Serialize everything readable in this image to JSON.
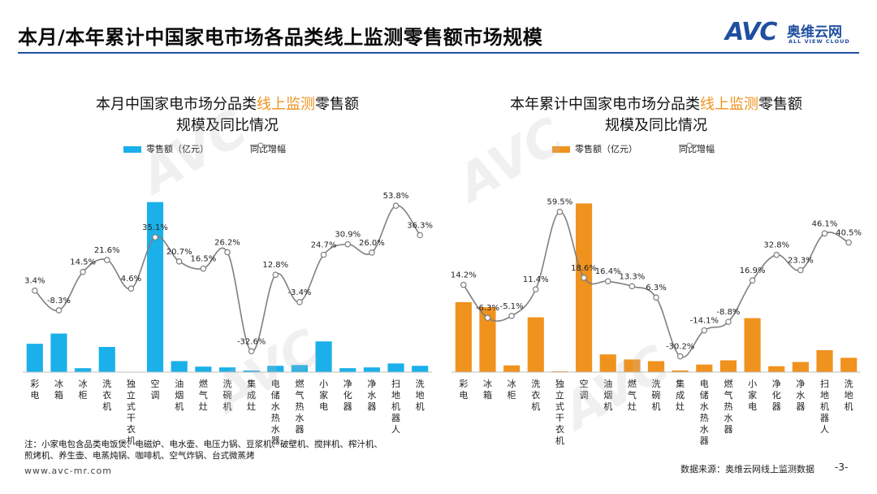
{
  "header": {
    "title": "本月/本年累计中国家电市场各品类线上监测零售额市场规模",
    "logo_mark": "AVC",
    "logo_cn": "奥维云网",
    "logo_en": "ALL VIEW CLOUD"
  },
  "footer": {
    "note_line1": "注：小家电包含品类电饭煲、电磁炉、电水壶、电压力锅、豆浆机、破壁机、搅拌机、榨汁机、",
    "note_line2": "煎烤机、养生壶、电蒸炖锅、咖啡机、空气炸锅、台式微蒸烤",
    "url": "www.avc-mr.com",
    "source": "数据来源：奥维云网线上监测数据",
    "page": "-3-"
  },
  "colors": {
    "left_bar": "#1ab0ea",
    "right_bar": "#f0921e",
    "line": "#7f7f7f",
    "title_rule": "#1f4fa0"
  },
  "chart_data": [
    {
      "type": "bar",
      "title_pre": "本月中国家电市场分品类",
      "title_hl": "线上监测",
      "title_post": "零售额",
      "title_line2": "规模及同比情况",
      "legend_bar": "零售额（亿元）",
      "legend_line": "同比增幅",
      "categories": [
        "彩电",
        "冰箱",
        "冰柜",
        "洗衣机",
        "独立式干衣机",
        "空调",
        "油烟机",
        "燃气灶",
        "洗碗机",
        "集成灶",
        "电储水热水器",
        "燃气热水器",
        "小家电",
        "净化器",
        "净水器",
        "扫地机器人",
        "洗地机"
      ],
      "series": [
        {
          "name": "零售额（亿元）",
          "kind": "bar",
          "values": [
            36,
            49,
            5,
            32,
            0.5,
            216,
            14,
            7,
            6,
            2,
            8,
            9,
            39,
            5,
            6,
            11,
            8
          ]
        },
        {
          "name": "同比增幅",
          "kind": "line",
          "values": [
            3.4,
            -8.3,
            14.5,
            21.6,
            4.6,
            35.1,
            20.7,
            16.5,
            26.2,
            -32.6,
            12.8,
            -3.4,
            24.7,
            30.9,
            26.0,
            53.8,
            36.3
          ],
          "labels": [
            "3.4%",
            "-8.3%",
            "14.5%",
            "21.6%",
            "4.6%",
            "35.1%",
            "20.7%",
            "16.5%",
            "26.2%",
            "-32.6%",
            "12.8%",
            "-3.4%",
            "24.7%",
            "30.9%",
            "26.0%",
            "53.8%",
            "36.3%"
          ]
        }
      ],
      "bar_ylim": [
        0,
        225
      ],
      "line_ylim": [
        -45,
        65
      ]
    },
    {
      "type": "bar",
      "title_pre": "本年累计中国家电市场分品类",
      "title_hl": "线上监测",
      "title_post": "零售额",
      "title_line2": "规模及同比情况",
      "legend_bar": "零售额（亿元）",
      "legend_line": "同比增幅",
      "categories": [
        "彩电",
        "冰箱",
        "冰柜",
        "洗衣机",
        "独立式干衣机",
        "空调",
        "油烟机",
        "燃气灶",
        "洗碗机",
        "集成灶",
        "电储水热水器",
        "燃气热水器",
        "小家电",
        "净化器",
        "净水器",
        "扫地机器人",
        "洗地机"
      ],
      "series": [
        {
          "name": "零售额（亿元）",
          "kind": "bar",
          "values": [
            83,
            77,
            8,
            65,
            1,
            200,
            21,
            15,
            13,
            2,
            9,
            14,
            64,
            7,
            12,
            26,
            17
          ]
        },
        {
          "name": "同比增幅",
          "kind": "line",
          "values": [
            14.2,
            -6.3,
            -5.1,
            11.4,
            59.5,
            18.6,
            16.4,
            13.3,
            6.3,
            -30.2,
            -14.1,
            -8.8,
            16.9,
            32.8,
            23.3,
            46.1,
            40.5
          ],
          "labels": [
            "14.2%",
            "-6.3%",
            "-5.1%",
            "11.4%",
            "59.5%",
            "18.6%",
            "16.4%",
            "13.3%",
            "6.3%",
            "-30.2%",
            "-14.1%",
            "-8.8%",
            "16.9%",
            "32.8%",
            "23.3%",
            "46.1%",
            "40.5%"
          ]
        }
      ],
      "bar_ylim": [
        0,
        210
      ],
      "line_ylim": [
        -40,
        75
      ]
    }
  ]
}
